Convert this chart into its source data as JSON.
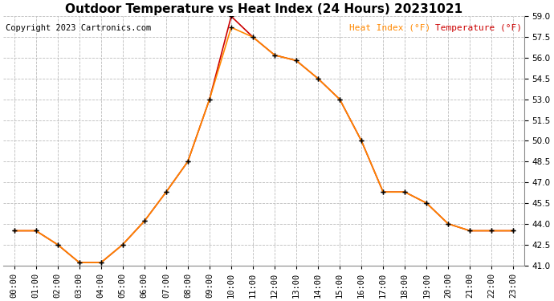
{
  "title": "Outdoor Temperature vs Heat Index (24 Hours) 20231021",
  "copyright": "Copyright 2023 Cartronics.com",
  "legend_heat_index": "Heat Index (°F)",
  "legend_temperature": "Temperature (°F)",
  "hours": [
    "00:00",
    "01:00",
    "02:00",
    "03:00",
    "04:00",
    "05:00",
    "06:00",
    "07:00",
    "08:00",
    "09:00",
    "10:00",
    "11:00",
    "12:00",
    "13:00",
    "14:00",
    "15:00",
    "16:00",
    "17:00",
    "18:00",
    "19:00",
    "20:00",
    "21:00",
    "22:00",
    "23:00"
  ],
  "temperature": [
    43.5,
    43.5,
    42.5,
    41.2,
    41.2,
    42.5,
    44.2,
    46.3,
    48.5,
    53.0,
    59.0,
    57.5,
    56.2,
    55.8,
    54.5,
    53.0,
    50.0,
    46.3,
    46.3,
    45.5,
    44.0,
    43.5,
    43.5,
    43.5
  ],
  "heat_index": [
    43.5,
    43.5,
    42.5,
    41.2,
    41.2,
    42.5,
    44.2,
    46.3,
    48.5,
    53.0,
    58.2,
    57.5,
    56.2,
    55.8,
    54.5,
    53.0,
    50.0,
    46.3,
    46.3,
    45.5,
    44.0,
    43.5,
    43.5,
    43.5
  ],
  "temp_color": "#cc0000",
  "heat_index_color": "#ff8800",
  "marker_color": "#000000",
  "ylim_min": 41.0,
  "ylim_max": 59.0,
  "ytick_step": 1.5,
  "background_color": "#ffffff",
  "grid_color": "#bbbbbb",
  "title_fontsize": 11,
  "copyright_fontsize": 7.5,
  "legend_fontsize": 8,
  "axis_label_fontsize": 7.5
}
